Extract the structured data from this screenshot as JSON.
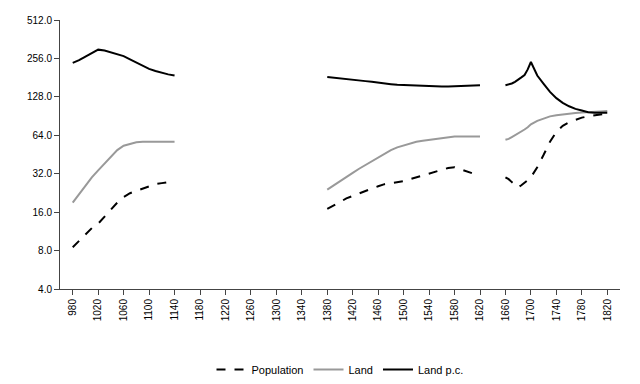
{
  "chart_data": {
    "type": "line",
    "log": "y",
    "grid": false,
    "legend": "bottom",
    "xlim": [
      960,
      1840
    ],
    "xticks": [
      980,
      1020,
      1060,
      1100,
      1140,
      1180,
      1220,
      1260,
      1300,
      1340,
      1380,
      1420,
      1460,
      1500,
      1540,
      1580,
      1620,
      1660,
      1700,
      1740,
      1780,
      1820
    ],
    "ylim": [
      4.0,
      512.0
    ],
    "yticks": [
      {
        "value": 4.0,
        "label": "4.0"
      },
      {
        "value": 8.0,
        "label": "8.0"
      },
      {
        "value": 16.0,
        "label": "16.0"
      },
      {
        "value": 32.0,
        "label": "32.0"
      },
      {
        "value": 64.0,
        "label": "64.0"
      },
      {
        "value": 128.0,
        "label": "128.0"
      },
      {
        "value": 256.0,
        "label": "256.0"
      },
      {
        "value": 512.0,
        "label": "512.0"
      }
    ],
    "series": [
      {
        "name": "Population",
        "color": "#000000",
        "line_style": "dashed",
        "x": [
          980,
          990,
          1000,
          1010,
          1020,
          1030,
          1040,
          1050,
          1060,
          1070,
          1080,
          1090,
          1100,
          1110,
          1120,
          1130,
          1140,
          null,
          1380,
          1390,
          1400,
          1410,
          1420,
          1430,
          1440,
          1450,
          1460,
          1470,
          1480,
          1490,
          1500,
          1510,
          1520,
          1530,
          1540,
          1550,
          1560,
          1570,
          1580,
          1590,
          1600,
          1610,
          1620,
          null,
          1660,
          1665,
          1670,
          1675,
          1680,
          1685,
          1690,
          1695,
          1700,
          1710,
          1720,
          1730,
          1740,
          1750,
          1760,
          1770,
          1780,
          1790,
          1800,
          1810,
          1820
        ],
        "values": [
          8.5,
          9.5,
          10.8,
          12.0,
          13.0,
          14.8,
          17.0,
          19.0,
          21.0,
          22.5,
          23.5,
          24.5,
          25.5,
          26.5,
          27.0,
          27.5,
          28.0,
          null,
          17.0,
          18.0,
          19.2,
          20.5,
          21.5,
          22.5,
          23.5,
          24.5,
          25.5,
          26.5,
          27.0,
          27.5,
          28.0,
          29.0,
          30.0,
          31.0,
          32.5,
          33.5,
          34.5,
          35.5,
          36.0,
          34.5,
          33.0,
          32.0,
          31.0,
          null,
          30.0,
          29.0,
          27.5,
          26.0,
          25.0,
          26.0,
          27.0,
          28.5,
          30.0,
          36.0,
          45.0,
          57.0,
          68.0,
          76.0,
          81.0,
          85.0,
          88.0,
          90.0,
          92.0,
          93.5,
          95.0
        ]
      },
      {
        "name": "Land",
        "color": "#999999",
        "line_style": "solid",
        "x": [
          980,
          990,
          1000,
          1010,
          1020,
          1030,
          1040,
          1050,
          1060,
          1070,
          1080,
          1090,
          1100,
          1110,
          1120,
          1130,
          1140,
          null,
          1380,
          1390,
          1400,
          1410,
          1420,
          1430,
          1440,
          1450,
          1460,
          1470,
          1480,
          1490,
          1500,
          1510,
          1520,
          1530,
          1540,
          1550,
          1560,
          1570,
          1580,
          1590,
          1600,
          1610,
          1620,
          null,
          1660,
          1665,
          1670,
          1675,
          1680,
          1685,
          1690,
          1695,
          1700,
          1710,
          1720,
          1730,
          1740,
          1750,
          1760,
          1770,
          1780,
          1790,
          1800,
          1810,
          1820
        ],
        "values": [
          19.0,
          22.0,
          26.0,
          30.0,
          34.0,
          38.5,
          44.0,
          49.0,
          53.0,
          55.0,
          56.5,
          57.0,
          57.0,
          57.0,
          57.0,
          57.0,
          57.0,
          null,
          24.0,
          26.0,
          28.0,
          30.0,
          32.5,
          35.0,
          37.5,
          40.0,
          43.0,
          46.0,
          49.0,
          51.5,
          53.5,
          55.5,
          57.0,
          58.0,
          59.0,
          60.0,
          61.0,
          62.0,
          62.5,
          62.5,
          62.5,
          62.5,
          62.5,
          null,
          59.0,
          60.0,
          62.0,
          64.0,
          66.0,
          68.5,
          71.0,
          74.0,
          78.0,
          83.0,
          87.0,
          90.0,
          92.0,
          93.5,
          94.5,
          95.5,
          96.5,
          97.5,
          98.0,
          98.5,
          99.0
        ]
      },
      {
        "name": "Land p.c.",
        "color": "#000000",
        "line_style": "solid",
        "x": [
          980,
          990,
          1000,
          1010,
          1020,
          1030,
          1040,
          1050,
          1060,
          1070,
          1080,
          1090,
          1100,
          1110,
          1120,
          1130,
          1140,
          null,
          1380,
          1390,
          1400,
          1410,
          1420,
          1430,
          1440,
          1450,
          1460,
          1470,
          1480,
          1490,
          1500,
          1510,
          1520,
          1530,
          1540,
          1550,
          1560,
          1570,
          1580,
          1590,
          1600,
          1610,
          1620,
          null,
          1660,
          1665,
          1670,
          1675,
          1680,
          1685,
          1690,
          1695,
          1700,
          1705,
          1710,
          1720,
          1730,
          1740,
          1750,
          1760,
          1770,
          1780,
          1790,
          1800,
          1810,
          1820
        ],
        "values": [
          236,
          248,
          265,
          283,
          300,
          295,
          285,
          276,
          267,
          252,
          238,
          225,
          212,
          204,
          197,
          192,
          188,
          null,
          183,
          181,
          179,
          178,
          176,
          173,
          170,
          168,
          165,
          163,
          161,
          159,
          158,
          157,
          156,
          155,
          154,
          154,
          154,
          154,
          155,
          155,
          156,
          157,
          158,
          null,
          158,
          160,
          163,
          168,
          174,
          182,
          190,
          210,
          240,
          215,
          188,
          162,
          140,
          125,
          115,
          108,
          103,
          100,
          97,
          96,
          96,
          96
        ]
      }
    ]
  }
}
